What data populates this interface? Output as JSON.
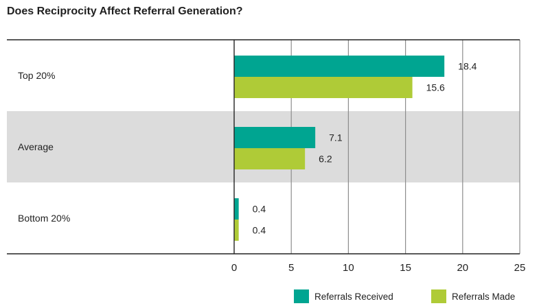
{
  "title": "Does Reciprocity Affect Referral Generation?",
  "colors": {
    "received": "#00A591",
    "made": "#AFCB37",
    "band": "#DCDCDC",
    "grid": "#8C8C8C",
    "axis": "#222222"
  },
  "chart_data": {
    "type": "bar",
    "orientation": "horizontal",
    "title": "Does Reciprocity Affect Referral Generation?",
    "categories": [
      "Top 20%",
      "Average",
      "Bottom 20%"
    ],
    "series": [
      {
        "name": "Referrals Received",
        "values": [
          18.4,
          7.1,
          0.4
        ],
        "data_labels": [
          "18.4",
          "7.1",
          "0.4"
        ]
      },
      {
        "name": "Referrals Made",
        "values": [
          15.6,
          6.2,
          0.4
        ],
        "data_labels": [
          "15.6",
          "6.2",
          "0.4"
        ]
      }
    ],
    "xlim": [
      0,
      25
    ],
    "x_ticks": [
      0,
      5,
      10,
      15,
      20,
      25
    ],
    "xlabel": "",
    "ylabel": "",
    "grid": true,
    "legend_position": "bottom-right"
  }
}
